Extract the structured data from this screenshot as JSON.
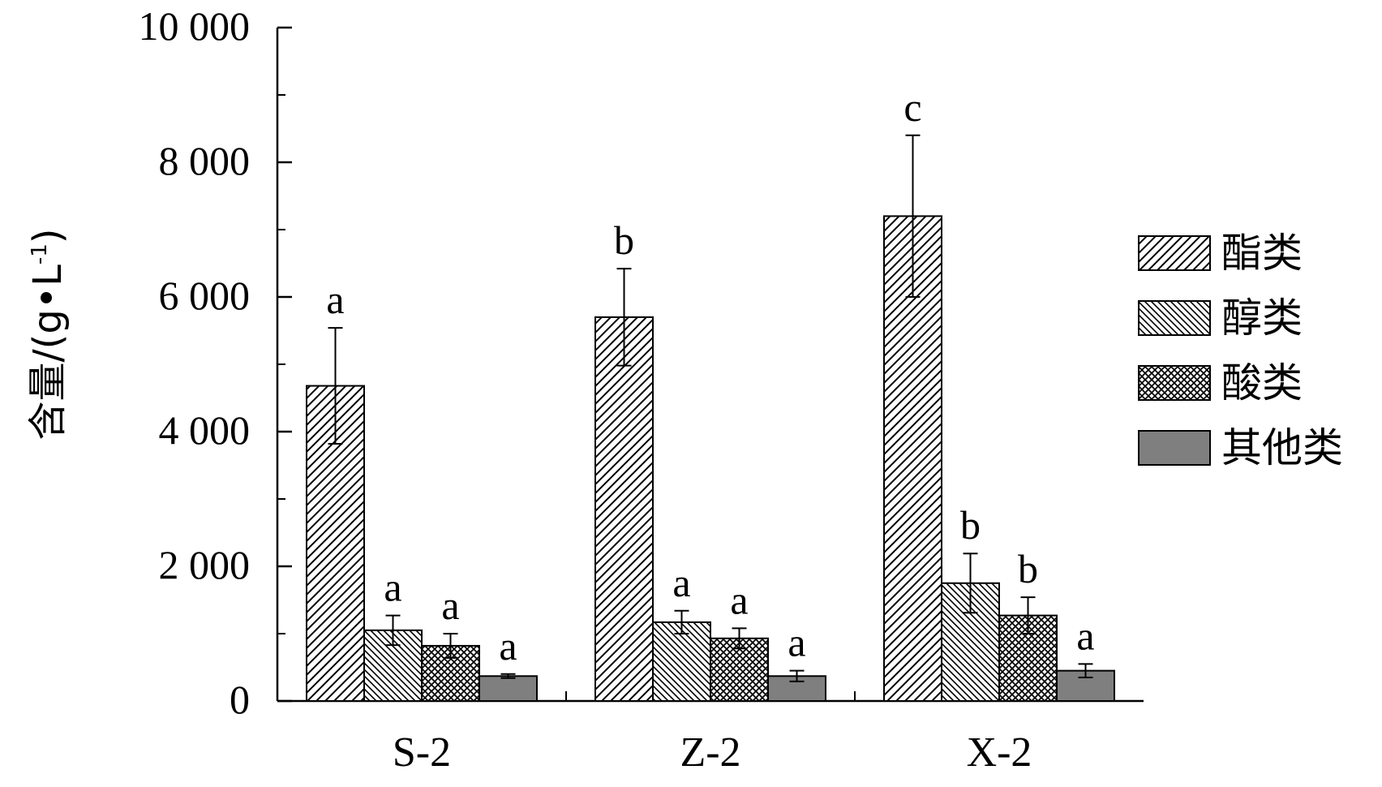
{
  "chart_data": {
    "type": "bar",
    "ylabel_text": "含量/(g•L",
    "ylabel_sup": "-1",
    "ylabel_close": ")",
    "ylim": [
      0,
      10000
    ],
    "yticks": [
      0,
      2000,
      4000,
      6000,
      8000,
      10000
    ],
    "ytick_labels": [
      "0",
      "2 000",
      "4 000",
      "6 000",
      "8 000",
      "10 000"
    ],
    "categories": [
      "S-2",
      "Z-2",
      "X-2"
    ],
    "legend_position": "right",
    "series": [
      {
        "name": "酯类",
        "pattern": "hatch-right",
        "values": [
          4680,
          5700,
          7200
        ],
        "errors": [
          860,
          720,
          1200
        ],
        "letters": [
          "a",
          "b",
          "c"
        ]
      },
      {
        "name": "醇类",
        "pattern": "hatch-left",
        "values": [
          1050,
          1170,
          1750
        ],
        "errors": [
          220,
          170,
          440
        ],
        "letters": [
          "a",
          "a",
          "b"
        ]
      },
      {
        "name": "酸类",
        "pattern": "crosshatch",
        "values": [
          820,
          930,
          1270
        ],
        "errors": [
          180,
          150,
          270
        ],
        "letters": [
          "a",
          "a",
          "b"
        ]
      },
      {
        "name": "其他类",
        "pattern": "solid-gray",
        "values": [
          370,
          370,
          450
        ],
        "errors": [
          30,
          80,
          100
        ],
        "letters": [
          "a",
          "a",
          "a"
        ]
      }
    ],
    "colors": {
      "solid_gray": "#7f7f7f",
      "line": "#000000",
      "background": "#ffffff"
    }
  }
}
